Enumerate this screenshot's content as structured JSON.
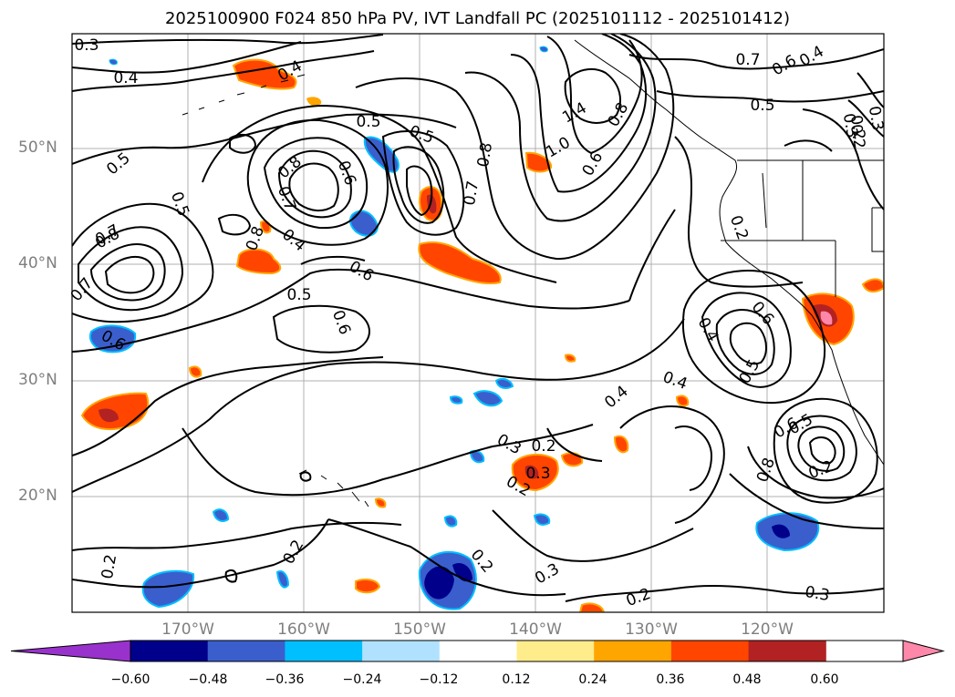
{
  "title": "2025100900 F024 850 hPa PV, IVT Landfall PC (2025101112 - 2025101412)",
  "lat_labels": [
    "50°N",
    "40°N",
    "30°N",
    "20°N"
  ],
  "lon_labels": [
    "170°W",
    "160°W",
    "150°W",
    "140°W",
    "130°W",
    "120°W"
  ],
  "colorbar": {
    "ticks": [
      "−0.60",
      "−0.48",
      "−0.36",
      "−0.24",
      "−0.12",
      "0.12",
      "0.24",
      "0.36",
      "0.48",
      "0.60"
    ],
    "colors": [
      "#9932cc",
      "#00008b",
      "#3a5fcd",
      "#00bfff",
      "#b0e2ff",
      "#ffffff",
      "#ffec8b",
      "#ffa500",
      "#ff4500",
      "#b22222",
      "#ff88aa"
    ]
  },
  "contour_labels": [
    "0.3",
    "0.4",
    "0.4",
    "0.5",
    "0.5",
    "0.8",
    "0.7",
    "0.6",
    "0.8",
    "0.7",
    "0.4",
    "0.5",
    "0.7",
    "0.8",
    "0.6",
    "0.5",
    "0.6",
    "0.5",
    "1.0",
    "0.6",
    "1.4",
    "0.8",
    "0.7",
    "0.6",
    "0.4",
    "0.3",
    "0.2",
    "0.7",
    "0.8",
    "0.6",
    "0.5",
    "0.4",
    "0.2",
    "0.3",
    "0.2",
    "0.3",
    "0.2",
    "0.4",
    "0.4",
    "0.6",
    "0.5",
    "0.8",
    "0.5",
    "0.2",
    "0.2",
    "0.2",
    "0.3",
    "0.2",
    "0.6",
    "0.3",
    "0.2",
    "0.3",
    "0.2"
  ]
}
